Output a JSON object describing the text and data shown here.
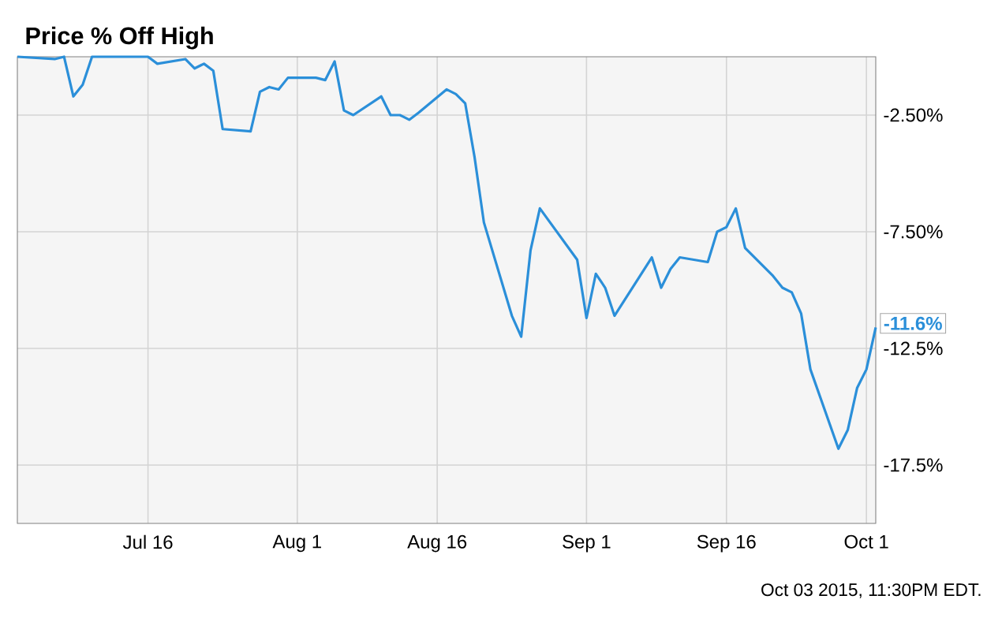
{
  "chart_data": {
    "type": "line",
    "title": "Price % Off High",
    "x": [
      "2015-07-02",
      "2015-07-06",
      "2015-07-07",
      "2015-07-08",
      "2015-07-09",
      "2015-07-10",
      "2015-07-13",
      "2015-07-14",
      "2015-07-15",
      "2015-07-16",
      "2015-07-17",
      "2015-07-20",
      "2015-07-21",
      "2015-07-22",
      "2015-07-23",
      "2015-07-24",
      "2015-07-27",
      "2015-07-28",
      "2015-07-29",
      "2015-07-30",
      "2015-07-31",
      "2015-08-03",
      "2015-08-04",
      "2015-08-05",
      "2015-08-06",
      "2015-08-07",
      "2015-08-10",
      "2015-08-11",
      "2015-08-12",
      "2015-08-13",
      "2015-08-14",
      "2015-08-17",
      "2015-08-18",
      "2015-08-19",
      "2015-08-20",
      "2015-08-21",
      "2015-08-24",
      "2015-08-25",
      "2015-08-26",
      "2015-08-27",
      "2015-08-31",
      "2015-09-01",
      "2015-09-02",
      "2015-09-03",
      "2015-09-04",
      "2015-09-08",
      "2015-09-09",
      "2015-09-10",
      "2015-09-11",
      "2015-09-14",
      "2015-09-15",
      "2015-09-16",
      "2015-09-17",
      "2015-09-18",
      "2015-09-21",
      "2015-09-22",
      "2015-09-23",
      "2015-09-24",
      "2015-09-25",
      "2015-09-28",
      "2015-09-29",
      "2015-09-30",
      "2015-10-01",
      "2015-10-02"
    ],
    "series": [
      {
        "color": "#2b8fd9",
        "values": [
          0,
          -0.1,
          0,
          -1.7,
          -1.2,
          0,
          0,
          0,
          0,
          0,
          -0.3,
          -0.1,
          -0.5,
          -0.3,
          -0.6,
          -3.1,
          -3.2,
          -1.5,
          -1.3,
          -1.4,
          -0.9,
          -0.9,
          -1.0,
          -0.2,
          -2.3,
          -2.5,
          -1.7,
          -2.5,
          -2.5,
          -2.7,
          -2.4,
          -1.4,
          -1.6,
          -2.0,
          -4.3,
          -7.1,
          -11.1,
          -12.0,
          -8.3,
          -6.5,
          -8.7,
          -11.2,
          -9.3,
          -9.9,
          -11.1,
          -8.6,
          -9.9,
          -9.1,
          -8.6,
          -8.8,
          -7.5,
          -7.3,
          -6.5,
          -8.2,
          -9.4,
          -9.9,
          -10.1,
          -11.0,
          -13.4,
          -16.8,
          -16.0,
          -14.2,
          -13.4,
          -11.6
        ],
        "value_labels": [
          null,
          null,
          null,
          null,
          null,
          null,
          null,
          null,
          null,
          null,
          null,
          null,
          null,
          null,
          null,
          null,
          null,
          null,
          null,
          null,
          null,
          null,
          null,
          null,
          null,
          null,
          null,
          null,
          null,
          null,
          null,
          null,
          null,
          null,
          null,
          null,
          null,
          null,
          null,
          null,
          null,
          null,
          null,
          null,
          null,
          null,
          null,
          null,
          null,
          null,
          null,
          null,
          null,
          null,
          null,
          null,
          null,
          null,
          null,
          null,
          null,
          null,
          null,
          "-11.6%"
        ]
      }
    ],
    "xlim": [
      "2015-07-02",
      "2015-10-02"
    ],
    "xticks": [
      {
        "value": "2015-07-16",
        "label": "Jul 16"
      },
      {
        "value": "2015-08-01",
        "label": "Aug 1"
      },
      {
        "value": "2015-08-16",
        "label": "Aug 16"
      },
      {
        "value": "2015-09-01",
        "label": "Sep 1"
      },
      {
        "value": "2015-09-16",
        "label": "Sep 16"
      },
      {
        "value": "2015-10-01",
        "label": "Oct 1"
      }
    ],
    "ylim": [
      -20,
      0
    ],
    "yticks": [
      {
        "value": -2.5,
        "label": "-2.50%"
      },
      {
        "value": -7.5,
        "label": "-7.50%"
      },
      {
        "value": -12.5,
        "label": "-12.5%"
      },
      {
        "value": -17.5,
        "label": "-17.5%"
      }
    ],
    "grid": true,
    "marker": "none",
    "line_style": "solid",
    "annotations": [
      "Oct 03 2015, 11:30PM EDT."
    ]
  }
}
